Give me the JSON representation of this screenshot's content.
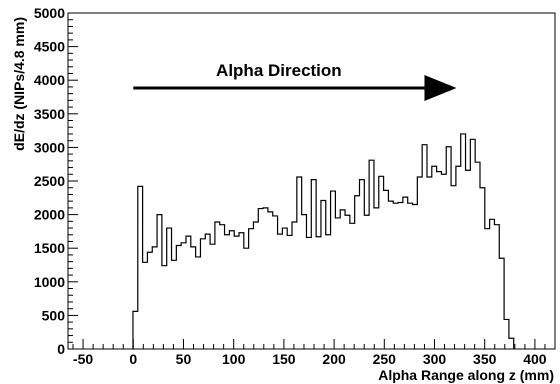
{
  "chart_data": {
    "type": "histogram",
    "xlabel": "Alpha Range along z (mm)",
    "ylabel": "dE/dz (NIPs/4.8 mm)",
    "xlim": [
      -65,
      420
    ],
    "ylim": [
      0,
      5000
    ],
    "x_ticks": [
      -50,
      0,
      50,
      100,
      150,
      200,
      250,
      300,
      350,
      400
    ],
    "y_ticks": [
      0,
      500,
      1000,
      1500,
      2000,
      2500,
      3000,
      3500,
      4000,
      4500,
      5000
    ],
    "x_tick_labels": [
      "-50",
      "0",
      "50",
      "100",
      "150",
      "200",
      "250",
      "300",
      "350",
      "400"
    ],
    "y_tick_labels": [
      "0",
      "500",
      "1000",
      "1500",
      "2000",
      "2500",
      "3000",
      "3500",
      "4000",
      "4500",
      "5000"
    ],
    "bin_width": 4.8,
    "bin_start": -0.3,
    "values": [
      560,
      2420,
      1290,
      1440,
      1520,
      2000,
      1240,
      1800,
      1320,
      1540,
      1580,
      1680,
      1520,
      1370,
      1640,
      1710,
      1560,
      1890,
      1850,
      1700,
      1760,
      1680,
      1730,
      1500,
      1790,
      1890,
      2090,
      2100,
      2040,
      1980,
      1710,
      1800,
      1690,
      1890,
      2560,
      2000,
      1660,
      2520,
      1670,
      2210,
      1700,
      2350,
      1950,
      2070,
      1990,
      1870,
      2280,
      2520,
      1990,
      2810,
      2100,
      2570,
      2360,
      2200,
      2170,
      2180,
      2260,
      2170,
      2150,
      2560,
      3040,
      2560,
      2720,
      2640,
      2600,
      3010,
      2430,
      2720,
      3200,
      2660,
      3120,
      2780,
      2400,
      1790,
      1930,
      1850,
      1350,
      440,
      160
    ],
    "annotation": "Alpha Direction",
    "grid": false,
    "legend": "none"
  }
}
